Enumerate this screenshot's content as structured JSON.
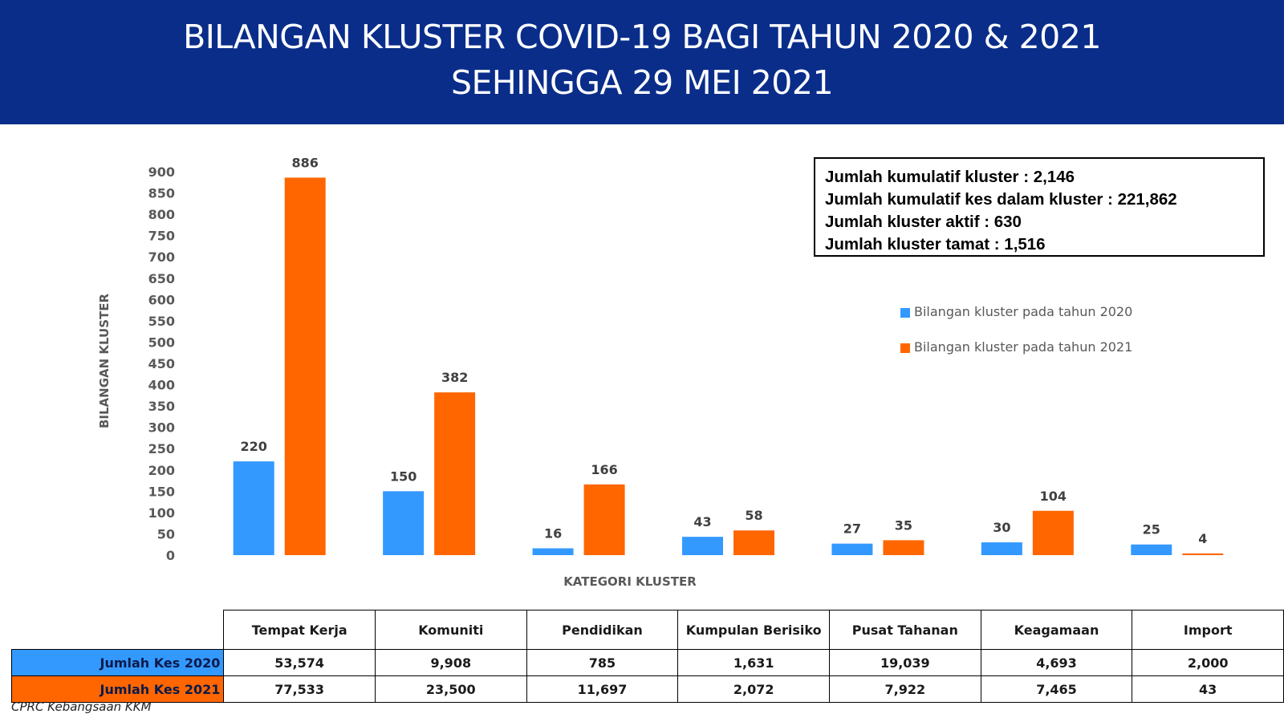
{
  "header": {
    "title_line1": "BILANGAN KLUSTER COVID-19 BAGI TAHUN 2020 & 2021",
    "title_line2": "SEHINGGA 29 MEI 2021",
    "background_color": "#0a2d8a"
  },
  "summary": {
    "line1": "Jumlah kumulatif kluster : 2,146",
    "line2": "Jumlah kumulatif kes dalam kluster : 221,862",
    "line3": "Jumlah kluster aktif : 630",
    "line4": "Jumlah kluster tamat : 1,516"
  },
  "chart_data": {
    "type": "bar",
    "title": "BILANGAN KLUSTER COVID-19 BAGI TAHUN 2020 & 2021 SEHINGGA 29 MEI 2021",
    "xlabel": "KATEGORI KLUSTER",
    "ylabel": "BILANGAN KLUSTER",
    "categories": [
      "Tempat Kerja",
      "Komuniti",
      "Pendidikan",
      "Kumpulan Berisiko",
      "Pusat Tahanan",
      "Keagamaan",
      "Import"
    ],
    "series": [
      {
        "name": "Bilangan kluster pada tahun 2020",
        "color": "#3399ff",
        "values": [
          220,
          150,
          16,
          43,
          27,
          30,
          25
        ]
      },
      {
        "name": "Bilangan kluster pada tahun 2021",
        "color": "#ff6600",
        "values": [
          886,
          382,
          166,
          58,
          35,
          104,
          4
        ]
      }
    ],
    "ylim": [
      0,
      900
    ],
    "yticks": [
      0,
      50,
      100,
      150,
      200,
      250,
      300,
      350,
      400,
      450,
      500,
      550,
      600,
      650,
      700,
      750,
      800,
      850,
      900
    ],
    "grid": false,
    "legend_position": "right",
    "data_labels": true
  },
  "table": {
    "categories": [
      "Tempat Kerja",
      "Komuniti",
      "Pendidikan",
      "Kumpulan Berisiko",
      "Pusat Tahanan",
      "Keagamaan",
      "Import"
    ],
    "rows": [
      {
        "label": "Jumlah Kes 2020",
        "color": "#3399ff",
        "values": [
          "53,574",
          "9,908",
          "785",
          "1,631",
          "19,039",
          "4,693",
          "2,000"
        ]
      },
      {
        "label": "Jumlah Kes 2021",
        "color": "#ff6600",
        "values": [
          "77,533",
          "23,500",
          "11,697",
          "2,072",
          "7,922",
          "7,465",
          "43"
        ]
      }
    ]
  },
  "footer": {
    "source": "CPRC Kebangsaan KKM"
  }
}
